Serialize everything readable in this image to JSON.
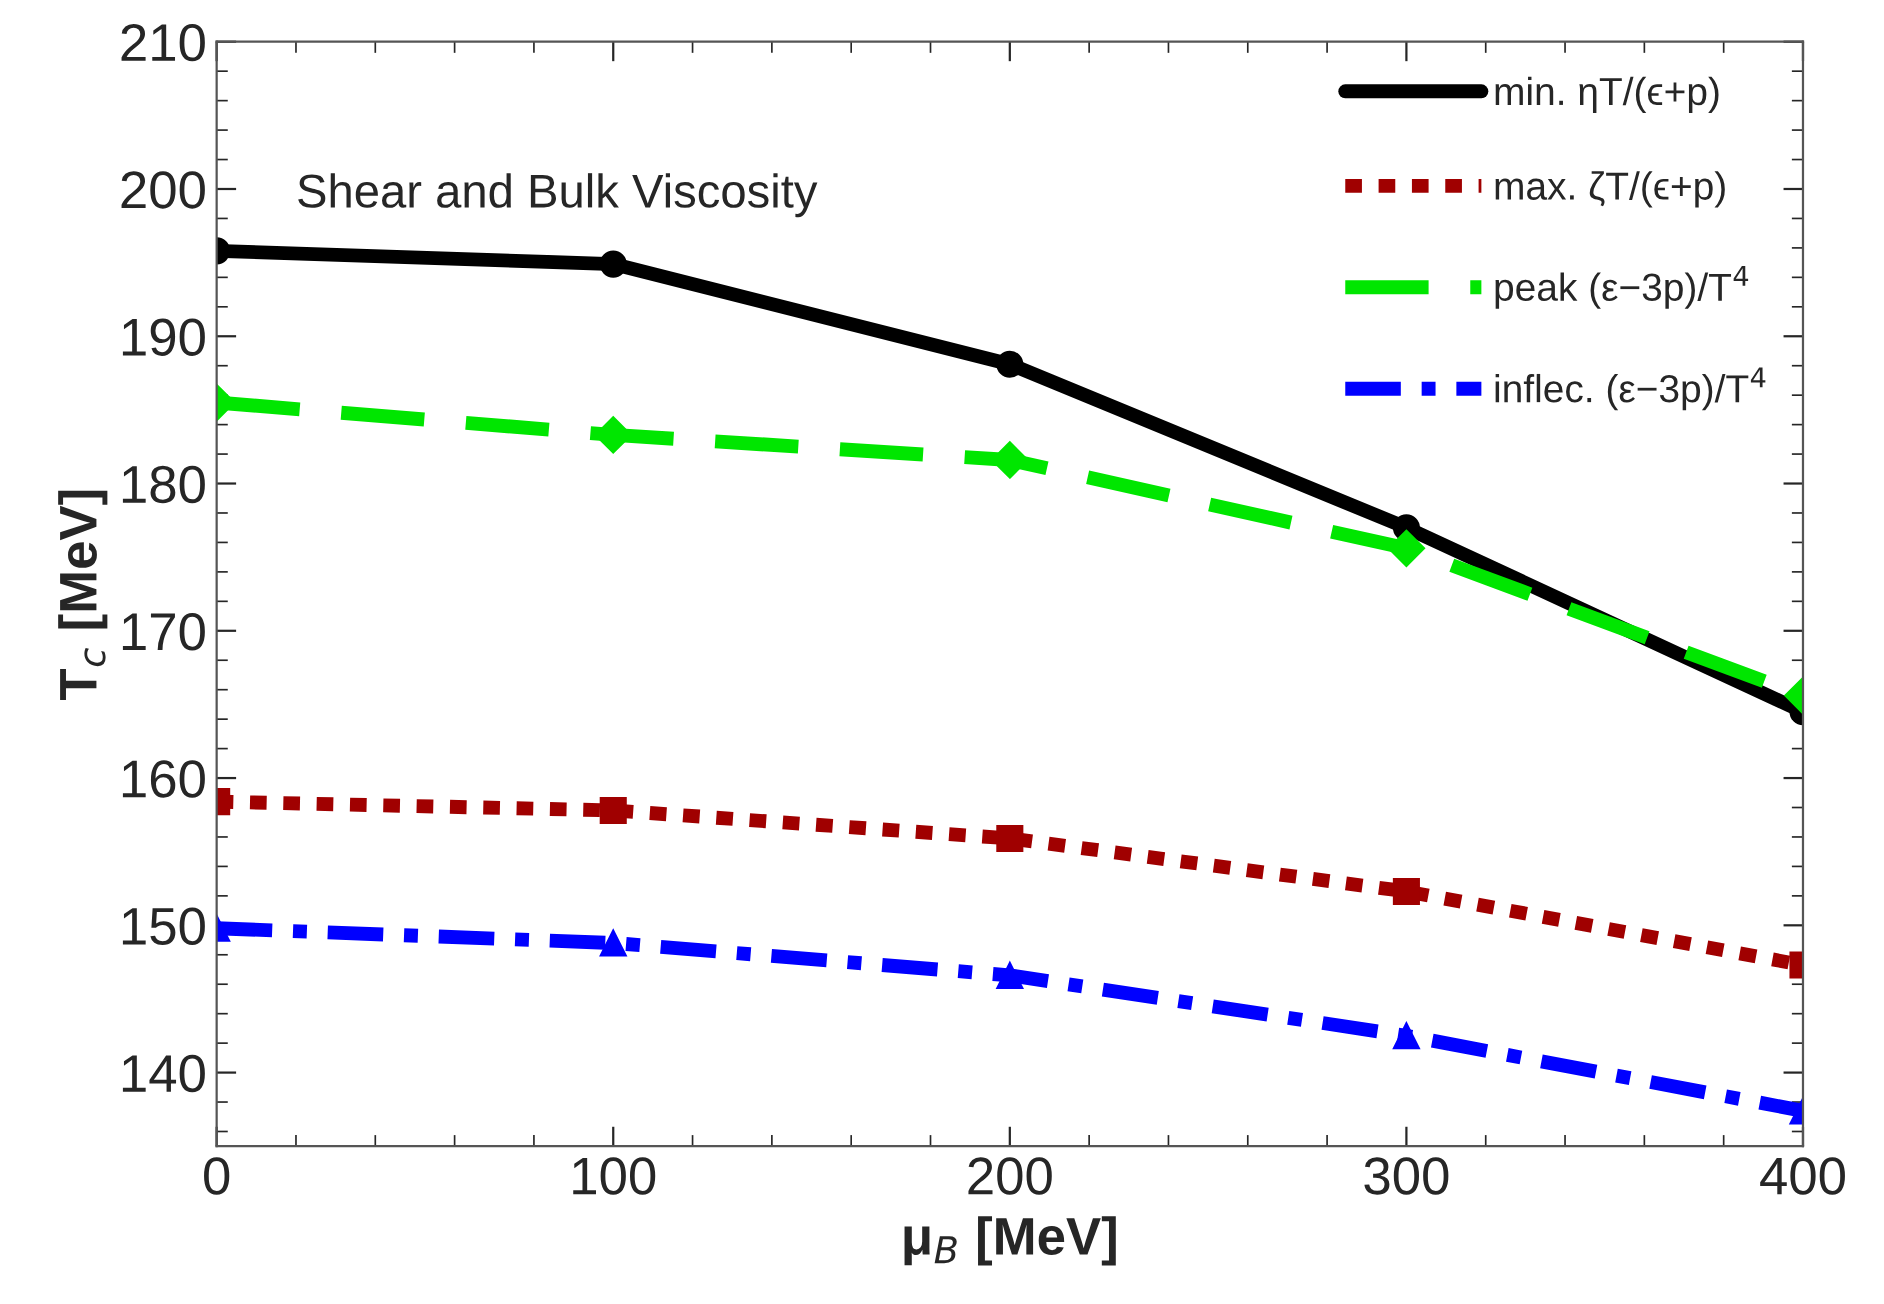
{
  "chart_data": {
    "type": "line",
    "xlabel": "μ$_{B}$ [MeV]",
    "ylabel": "T$_{c}$ [MeV]",
    "x": [
      0,
      100,
      200,
      300,
      400
    ],
    "series": [
      {
        "name": "min. ηT/(ϵ+p)",
        "color": "#000000",
        "marker": "circle",
        "line_style": "solid",
        "values": [
          195.8,
          194.9,
          188.1,
          177.0,
          164.5
        ]
      },
      {
        "name": "max. ζT/(ϵ+p)",
        "color": "#a00000",
        "marker": "square",
        "line_style": "dotted",
        "values": [
          158.4,
          157.8,
          155.9,
          152.3,
          147.3
        ]
      },
      {
        "name": "peak (ε−3p)/T$^{4}$",
        "color": "#00e600",
        "marker": "diamond",
        "line_style": "dashed",
        "values": [
          185.5,
          183.3,
          181.6,
          175.6,
          165.6
        ]
      },
      {
        "name": "inflec. (ε−3p)/T$^{4}$",
        "color": "#0000ff",
        "marker": "triangle",
        "line_style": "dashdot",
        "values": [
          149.8,
          148.8,
          146.6,
          142.5,
          137.4
        ]
      }
    ],
    "annotations": [
      "Shear and Bulk Viscosity"
    ],
    "xlim": [
      0,
      400
    ],
    "xticks": [
      0,
      100,
      200,
      300,
      400
    ],
    "ylim": [
      135,
      210
    ],
    "yticks": [
      140,
      150,
      160,
      170,
      180,
      190,
      200,
      210
    ],
    "grid": false,
    "legend": "top right"
  }
}
